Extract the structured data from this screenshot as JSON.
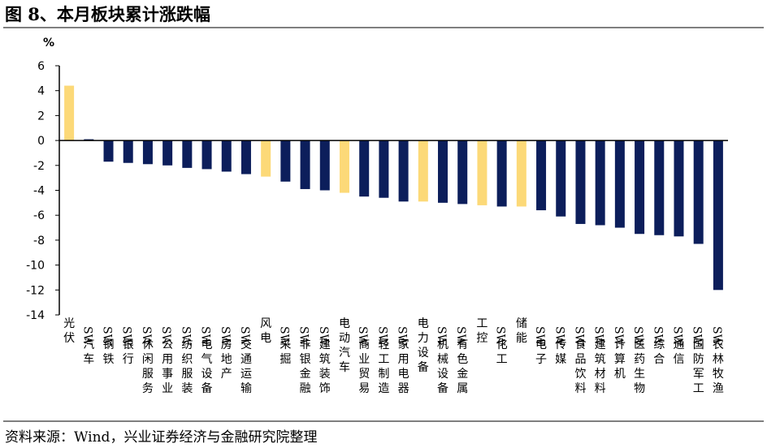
{
  "header": {
    "title": "图 8、本月板块累计涨跌幅"
  },
  "footer": {
    "source": "资料来源：Wind，兴业证券经济与金融研究院整理"
  },
  "colors": {
    "highlight": "#FCD978",
    "primary": "#0C1E5B",
    "axis": "#000000"
  },
  "chart_data": {
    "type": "bar",
    "unit": "%",
    "ylim": [
      -14,
      6
    ],
    "yticks": [
      6,
      4,
      2,
      0,
      -2,
      -4,
      -6,
      -8,
      -10,
      -12,
      -14
    ],
    "grid": false,
    "categories": [
      "光伏",
      "SW汽车",
      "SW钢铁",
      "SW银行",
      "SW休闲服务",
      "SW公用事业",
      "SW纺织服装",
      "SW电气设备",
      "SW房地产",
      "SW交通运输",
      "风电",
      "SW采掘",
      "SW非银金融",
      "SW建筑装饰",
      "电动汽车",
      "SW商业贸易",
      "SW轻工制造",
      "SW家用电器",
      "电力设备",
      "SW机械设备",
      "SW有色金属",
      "工控",
      "SW化工",
      "储能",
      "SW电子",
      "SW传媒",
      "SW食品饮料",
      "SW建筑材料",
      "SW计算机",
      "SW医药生物",
      "SW综合",
      "SW通信",
      "SW国防军工",
      "SW农林牧渔"
    ],
    "values": [
      4.4,
      0.1,
      -1.7,
      -1.8,
      -1.9,
      -2.0,
      -2.2,
      -2.3,
      -2.5,
      -2.7,
      -2.9,
      -3.3,
      -3.9,
      -4.0,
      -4.2,
      -4.5,
      -4.6,
      -4.9,
      -4.9,
      -5.0,
      -5.1,
      -5.2,
      -5.3,
      -5.3,
      -5.6,
      -6.1,
      -6.7,
      -6.8,
      -7.0,
      -7.5,
      -7.6,
      -7.7,
      -8.3,
      -12.0
    ],
    "highlighted": [
      "光伏",
      "风电",
      "电动汽车",
      "电力设备",
      "工控",
      "储能"
    ]
  }
}
